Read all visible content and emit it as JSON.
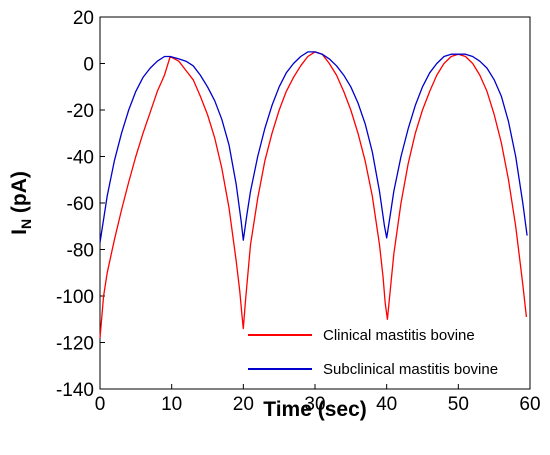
{
  "chart_data": {
    "type": "line",
    "title": "",
    "xlabel": "Time (sec)",
    "ylabel_main": "I",
    "ylabel_sub": "N",
    "ylabel_unit": " (pA)",
    "xlim": [
      0,
      60
    ],
    "ylim": [
      -140,
      20
    ],
    "xticks": [
      0,
      10,
      20,
      30,
      40,
      50,
      60
    ],
    "yticks": [
      20,
      0,
      -20,
      -40,
      -60,
      -80,
      -100,
      -120,
      -140
    ],
    "grid": false,
    "legend_position": "bottom-right",
    "series": [
      {
        "name": "Clinical mastitis bovine",
        "color": "#ff0000",
        "x": [
          0,
          0.5,
          1,
          2,
          3,
          4,
          5,
          6,
          7,
          8,
          9,
          9.8,
          11,
          12,
          13,
          14,
          15,
          16,
          17,
          18,
          19,
          19.5,
          19.8,
          20,
          20.3,
          21,
          22,
          23,
          24,
          25,
          26,
          27,
          28,
          29,
          30,
          31,
          32,
          33,
          34,
          35,
          36,
          37,
          38,
          39,
          39.5,
          39.8,
          40.1,
          41,
          42,
          43,
          44,
          45,
          46,
          47,
          48,
          49,
          50,
          51,
          52,
          53,
          54,
          55,
          56,
          57,
          58,
          59,
          59.5
        ],
        "y": [
          -118,
          -100,
          -90,
          -76,
          -63,
          -51,
          -40,
          -30,
          -21,
          -12,
          -5,
          3,
          1,
          -3,
          -7,
          -14,
          -22,
          -32,
          -45,
          -62,
          -85,
          -98,
          -108,
          -114,
          -102,
          -78,
          -58,
          -42,
          -30,
          -20,
          -12,
          -6,
          -1,
          3,
          5,
          4,
          0,
          -5,
          -12,
          -20,
          -30,
          -42,
          -57,
          -78,
          -92,
          -103,
          -110,
          -82,
          -60,
          -43,
          -30,
          -20,
          -12,
          -5,
          0,
          3,
          4,
          3,
          0,
          -5,
          -12,
          -22,
          -34,
          -50,
          -70,
          -95,
          -109
        ]
      },
      {
        "name": "Subclinical mastitis bovine",
        "color": "#0000cc",
        "x": [
          0,
          1,
          2,
          3,
          4,
          5,
          6,
          7,
          8,
          9,
          9.8,
          11,
          12,
          13,
          14,
          15,
          16,
          17,
          18,
          19,
          19.7,
          20,
          20.5,
          21,
          22,
          23,
          24,
          25,
          26,
          27,
          28,
          29,
          30,
          31,
          32,
          33,
          34,
          35,
          36,
          37,
          38,
          39,
          39.7,
          40,
          40.5,
          41,
          42,
          43,
          44,
          45,
          46,
          47,
          48,
          49,
          50,
          51,
          52,
          53,
          54,
          55,
          56,
          57,
          58,
          59,
          59.6
        ],
        "y": [
          -77,
          -57,
          -42,
          -30,
          -20,
          -12,
          -6,
          -2,
          1,
          3,
          3,
          2,
          1,
          -1,
          -5,
          -10,
          -16,
          -24,
          -35,
          -52,
          -68,
          -76,
          -65,
          -55,
          -40,
          -28,
          -18,
          -10,
          -4,
          0,
          3,
          5,
          5,
          4,
          2,
          -1,
          -5,
          -10,
          -17,
          -26,
          -38,
          -55,
          -70,
          -75,
          -65,
          -55,
          -40,
          -28,
          -18,
          -10,
          -4,
          0,
          3,
          4,
          4,
          4,
          3,
          1,
          -2,
          -7,
          -14,
          -25,
          -40,
          -60,
          -74
        ]
      }
    ]
  }
}
